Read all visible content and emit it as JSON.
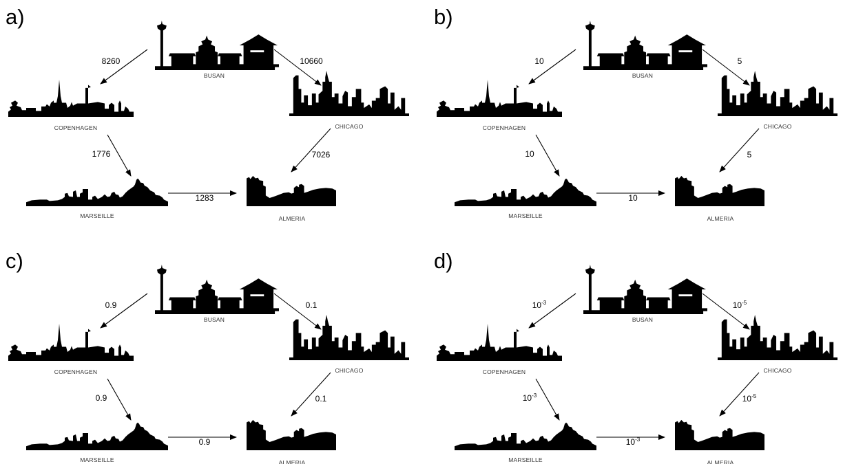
{
  "cities": {
    "busan": "BUSAN",
    "copenhagen": "COPENHAGEN",
    "chicago": "CHICAGO",
    "marseille": "MARSEILLE",
    "almeria": "ALMERIA"
  },
  "panels": [
    {
      "letter": "a)",
      "edges": {
        "busan_copenhagen": {
          "base": "8260",
          "sup": ""
        },
        "busan_chicago": {
          "base": "10660",
          "sup": ""
        },
        "copenhagen_marseille": {
          "base": "1776",
          "sup": ""
        },
        "chicago_almeria": {
          "base": "7026",
          "sup": ""
        },
        "marseille_almeria": {
          "base": "1283",
          "sup": ""
        }
      }
    },
    {
      "letter": "b)",
      "edges": {
        "busan_copenhagen": {
          "base": "10",
          "sup": ""
        },
        "busan_chicago": {
          "base": "5",
          "sup": ""
        },
        "copenhagen_marseille": {
          "base": "10",
          "sup": ""
        },
        "chicago_almeria": {
          "base": "5",
          "sup": ""
        },
        "marseille_almeria": {
          "base": "10",
          "sup": ""
        }
      }
    },
    {
      "letter": "c)",
      "edges": {
        "busan_copenhagen": {
          "base": "0.9",
          "sup": ""
        },
        "busan_chicago": {
          "base": "0.1",
          "sup": ""
        },
        "copenhagen_marseille": {
          "base": "0.9",
          "sup": ""
        },
        "chicago_almeria": {
          "base": "0.1",
          "sup": ""
        },
        "marseille_almeria": {
          "base": "0.9",
          "sup": ""
        }
      }
    },
    {
      "letter": "d)",
      "edges": {
        "busan_copenhagen": {
          "base": "10",
          "sup": "-3"
        },
        "busan_chicago": {
          "base": "10",
          "sup": "-5"
        },
        "copenhagen_marseille": {
          "base": "10",
          "sup": "-3"
        },
        "chicago_almeria": {
          "base": "10",
          "sup": "-5"
        },
        "marseille_almeria": {
          "base": "10",
          "sup": "-3"
        }
      }
    }
  ]
}
